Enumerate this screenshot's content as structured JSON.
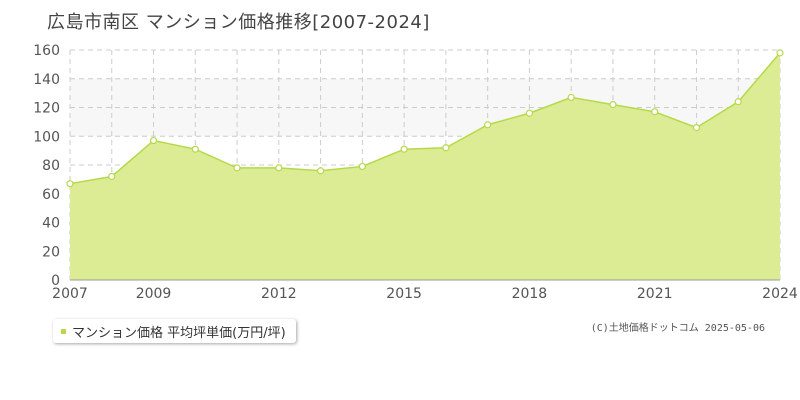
{
  "title": "広島市南区 マンション価格推移[2007-2024]",
  "legend": {
    "label": "マンション価格 平均坪単価(万円/坪)"
  },
  "copyright": "(C)土地価格ドットコム 2025-05-06",
  "colors": {
    "fill": "#dbec94",
    "line": "#b5d94a",
    "band": "#f7f7f7",
    "grid": "#cccccc"
  },
  "chart_data": {
    "type": "area",
    "title": "広島市南区 マンション価格推移[2007-2024]",
    "xlabel": "",
    "ylabel": "",
    "x": [
      2007,
      2008,
      2009,
      2010,
      2011,
      2012,
      2013,
      2014,
      2015,
      2016,
      2017,
      2018,
      2019,
      2020,
      2021,
      2022,
      2023,
      2024
    ],
    "series": [
      {
        "name": "マンション価格 平均坪単価(万円/坪)",
        "values": [
          67,
          72,
          97,
          91,
          78,
          78,
          76,
          79,
          91,
          92,
          108,
          116,
          127,
          122,
          117,
          106,
          124,
          158
        ]
      }
    ],
    "xlim": [
      2007,
      2024
    ],
    "ylim": [
      0,
      160
    ],
    "yticks": [
      0,
      20,
      40,
      60,
      80,
      100,
      120,
      140,
      160
    ],
    "xtick_labels": [
      "2007",
      "2009",
      "2012",
      "2015",
      "2018",
      "2021",
      "2024"
    ],
    "grid": true,
    "legend_position": "bottom-left"
  }
}
